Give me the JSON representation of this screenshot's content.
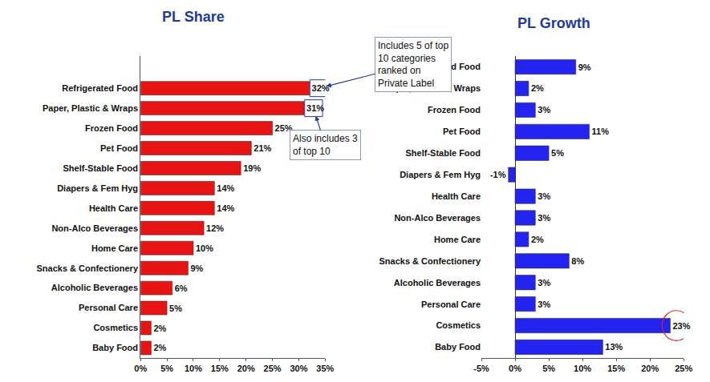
{
  "chart_data": [
    {
      "type": "bar",
      "title": "PL Share",
      "orientation": "horizontal",
      "categories": [
        "Refrigerated Food",
        "Paper, Plastic & Wraps",
        "Frozen Food",
        "Pet Food",
        "Shelf-Stable Food",
        "Diapers & Fem Hyg",
        "Health Care",
        "Non-Alco Beverages",
        "Home Care",
        "Snacks & Confectionery",
        "Alcoholic Beverages",
        "Personal Care",
        "Cosmetics",
        "Baby Food"
      ],
      "values": [
        32,
        31,
        25,
        21,
        19,
        14,
        14,
        12,
        10,
        9,
        6,
        5,
        2,
        2
      ],
      "value_labels": [
        "32%",
        "31%",
        "25%",
        "21%",
        "19%",
        "14%",
        "14%",
        "12%",
        "10%",
        "9%",
        "6%",
        "5%",
        "2%",
        "2%"
      ],
      "color": "#e81414",
      "xlim": [
        0,
        35
      ],
      "xticks": [
        {
          "value": 0,
          "label": "0%"
        },
        {
          "value": 5,
          "label": "5%"
        },
        {
          "value": 10,
          "label": "10%"
        },
        {
          "value": 15,
          "label": "15%"
        },
        {
          "value": 20,
          "label": "20%"
        },
        {
          "value": 25,
          "label": "25%"
        },
        {
          "value": 30,
          "label": "30%"
        },
        {
          "value": 35,
          "label": "35%"
        }
      ],
      "data_labels": true,
      "grid": false,
      "annotations": [
        "Includes 5 of top\n10 categories\nranked on\nPrivate Label",
        "Also includes 3\nof top 10"
      ]
    },
    {
      "type": "bar",
      "title": "PL Growth",
      "orientation": "horizontal",
      "categories": [
        "Refrigerated Food",
        "Paper, Plastic & Wraps",
        "Frozen Food",
        "Pet Food",
        "Shelf-Stable Food",
        "Diapers & Fem Hyg",
        "Health Care",
        "Non-Alco Beverages",
        "Home Care",
        "Snacks & Confectionery",
        "Alcoholic Beverages",
        "Personal Care",
        "Cosmetics",
        "Baby Food"
      ],
      "values": [
        9,
        2,
        3,
        11,
        5,
        -1,
        3,
        3,
        2,
        8,
        3,
        3,
        23,
        13
      ],
      "value_labels": [
        "9%",
        "2%",
        "3%",
        "11%",
        "5%",
        "-1%",
        "3%",
        "3%",
        "2%",
        "8%",
        "3%",
        "3%",
        "23%",
        "13%"
      ],
      "color": "#2424f0",
      "xlim": [
        -5,
        25
      ],
      "xticks": [
        {
          "value": -5,
          "label": "-5%"
        },
        {
          "value": 0,
          "label": "0%"
        },
        {
          "value": 5,
          "label": "5%"
        },
        {
          "value": 10,
          "label": "10%"
        },
        {
          "value": 15,
          "label": "15%"
        },
        {
          "value": 20,
          "label": "20%"
        },
        {
          "value": 25,
          "label": "25%"
        }
      ],
      "data_labels": true,
      "grid": false
    }
  ]
}
